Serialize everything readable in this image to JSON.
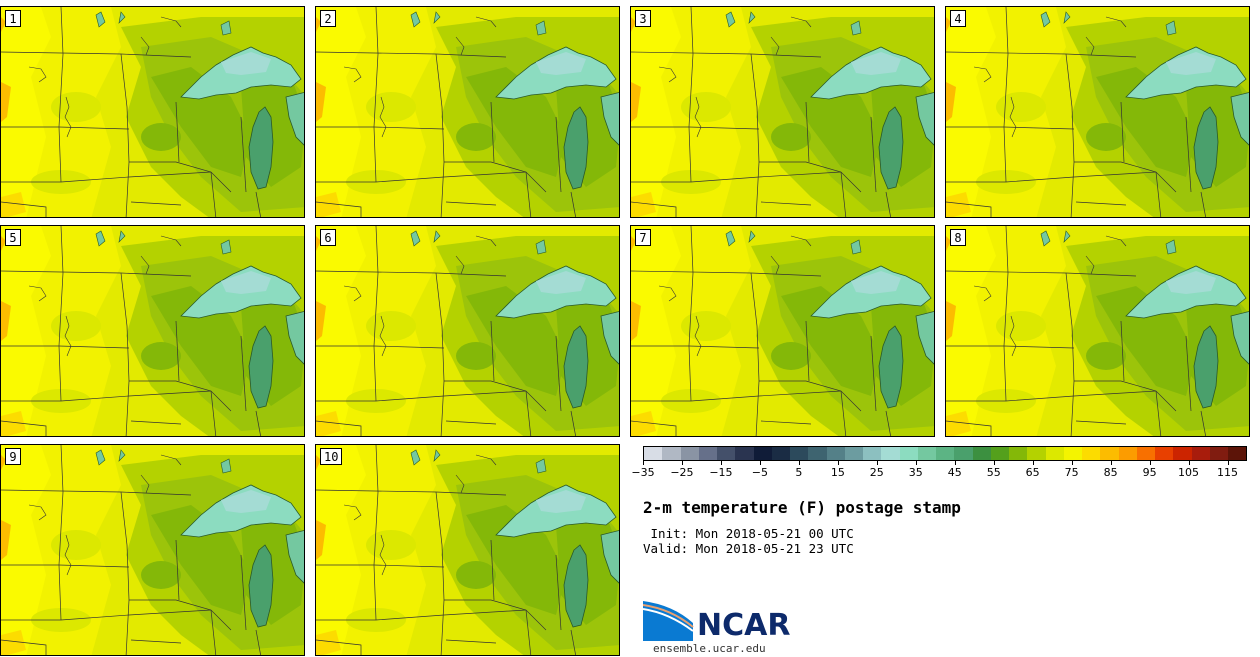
{
  "panels": [
    {
      "label": "1"
    },
    {
      "label": "2"
    },
    {
      "label": "3"
    },
    {
      "label": "4"
    },
    {
      "label": "5"
    },
    {
      "label": "6"
    },
    {
      "label": "7"
    },
    {
      "label": "8"
    },
    {
      "label": "9"
    },
    {
      "label": "10"
    }
  ],
  "colorbar": {
    "colors": [
      "#d8dde6",
      "#b0b8c4",
      "#8a94a4",
      "#66708a",
      "#44506a",
      "#2a3450",
      "#101c38",
      "#1a2c44",
      "#2c4a5c",
      "#3e6470",
      "#548088",
      "#6c9ca0",
      "#8cc0c0",
      "#a4dcd4",
      "#8cdcc0",
      "#74c8a0",
      "#5cb484",
      "#4aa06c",
      "#3c9040",
      "#54a01c",
      "#84b808",
      "#b4d200",
      "#dce800",
      "#f4f400",
      "#fcdc00",
      "#fcbc00",
      "#fc9c00",
      "#f87000",
      "#e84000",
      "#cc2400",
      "#a81c0c",
      "#801c10",
      "#5c1408"
    ],
    "tick_labels": [
      "−35",
      "−25",
      "−15",
      "−5",
      "5",
      "15",
      "25",
      "35",
      "45",
      "55",
      "65",
      "75",
      "85",
      "95",
      "105",
      "115"
    ]
  },
  "title": "2-m temperature (F) postage stamp",
  "init": " Init: Mon 2018-05-21 00 UTC",
  "valid": "Valid: Mon 2018-05-21 23 UTC",
  "logo": {
    "text": "NCAR",
    "site": "ensemble.ucar.edu"
  }
}
